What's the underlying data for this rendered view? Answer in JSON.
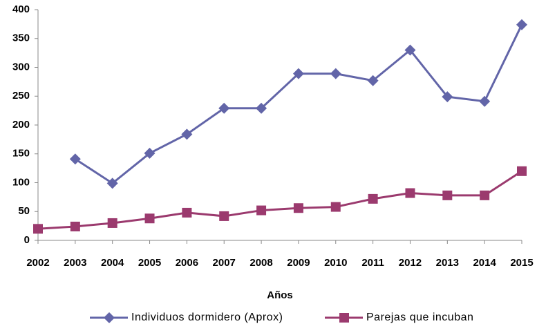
{
  "chart_data": {
    "type": "line",
    "x_label": "Años",
    "categories": [
      "2002",
      "2003",
      "2004",
      "2005",
      "2006",
      "2007",
      "2008",
      "2009",
      "2010",
      "2011",
      "2012",
      "2013",
      "2014",
      "2015"
    ],
    "series": [
      {
        "name": "Individuos dormidero (Aprox)",
        "color": "#6265a8",
        "marker": "diamond",
        "values": [
          null,
          141,
          99,
          151,
          184,
          229,
          229,
          289,
          289,
          277,
          330,
          249,
          241,
          374
        ]
      },
      {
        "name": "Parejas que incuban",
        "color": "#9b3a6e",
        "marker": "square",
        "values": [
          20,
          24,
          30,
          38,
          48,
          42,
          52,
          56,
          58,
          72,
          82,
          78,
          78,
          120
        ]
      }
    ],
    "ylim": [
      0,
      400
    ],
    "yticks": [
      0,
      50,
      100,
      150,
      200,
      250,
      300,
      350,
      400
    ],
    "grid": false,
    "legend": "bottom"
  }
}
